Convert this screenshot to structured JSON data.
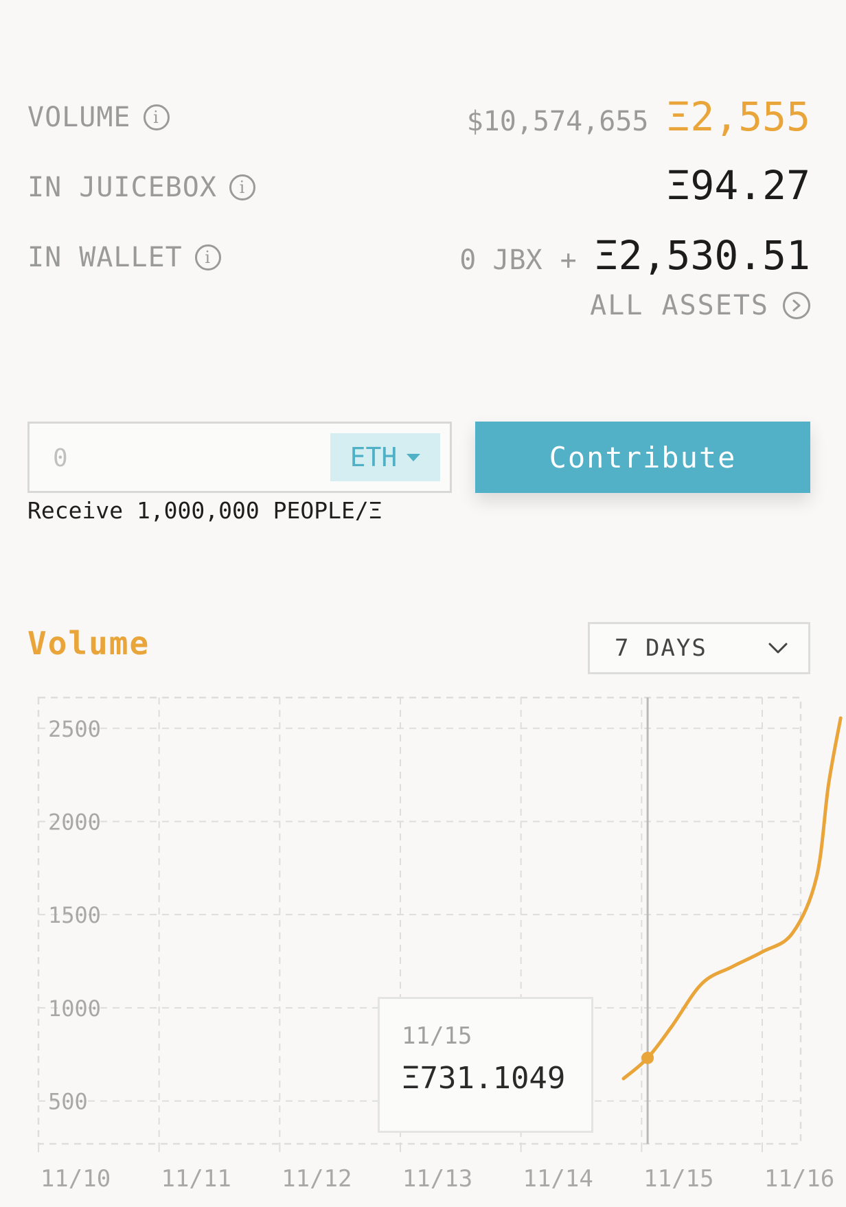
{
  "stats": {
    "volume": {
      "label": "VOLUME",
      "usd": "$10,574,655",
      "eth": "Ξ2,555"
    },
    "in_juicebox": {
      "label": "IN JUICEBOX",
      "eth": "Ξ94.27"
    },
    "in_wallet": {
      "label": "IN WALLET",
      "jbx": "0 JBX",
      "plus": "+",
      "eth": "Ξ2,530.51"
    },
    "all_assets": "ALL ASSETS"
  },
  "contribute": {
    "amount_placeholder": "0",
    "currency": "ETH",
    "button": "Contribute",
    "receive_text": "Receive 1,000,000 PEOPLE/Ξ"
  },
  "chart": {
    "title": "Volume",
    "range_selected": "7 DAYS",
    "tooltip": {
      "date": "11/15",
      "value": "Ξ731.1049"
    },
    "colors": {
      "line": "#e9a53a",
      "grid": "#dddddd",
      "tick": "#a8a8a8"
    }
  },
  "chart_data": {
    "type": "line",
    "title": "Volume",
    "xlabel": "",
    "ylabel": "",
    "x_ticks": [
      "11/10",
      "11/11",
      "11/12",
      "11/13",
      "11/14",
      "11/15",
      "11/16"
    ],
    "y_ticks": [
      500,
      1000,
      1500,
      2000,
      2500
    ],
    "ylim": [
      270,
      2665
    ],
    "xlim": [
      0,
      6.7
    ],
    "grid": true,
    "series": [
      {
        "points": [
          {
            "x": 4.85,
            "y": 620
          },
          {
            "x": 5.05,
            "y": 731
          },
          {
            "x": 5.25,
            "y": 900
          },
          {
            "x": 5.5,
            "y": 1130
          },
          {
            "x": 5.75,
            "y": 1220
          },
          {
            "x": 6.0,
            "y": 1300
          },
          {
            "x": 6.25,
            "y": 1400
          },
          {
            "x": 6.45,
            "y": 1700
          },
          {
            "x": 6.55,
            "y": 2200
          },
          {
            "x": 6.65,
            "y": 2555
          }
        ]
      }
    ],
    "highlight": {
      "x": 5.05,
      "y": 731.1049
    }
  }
}
